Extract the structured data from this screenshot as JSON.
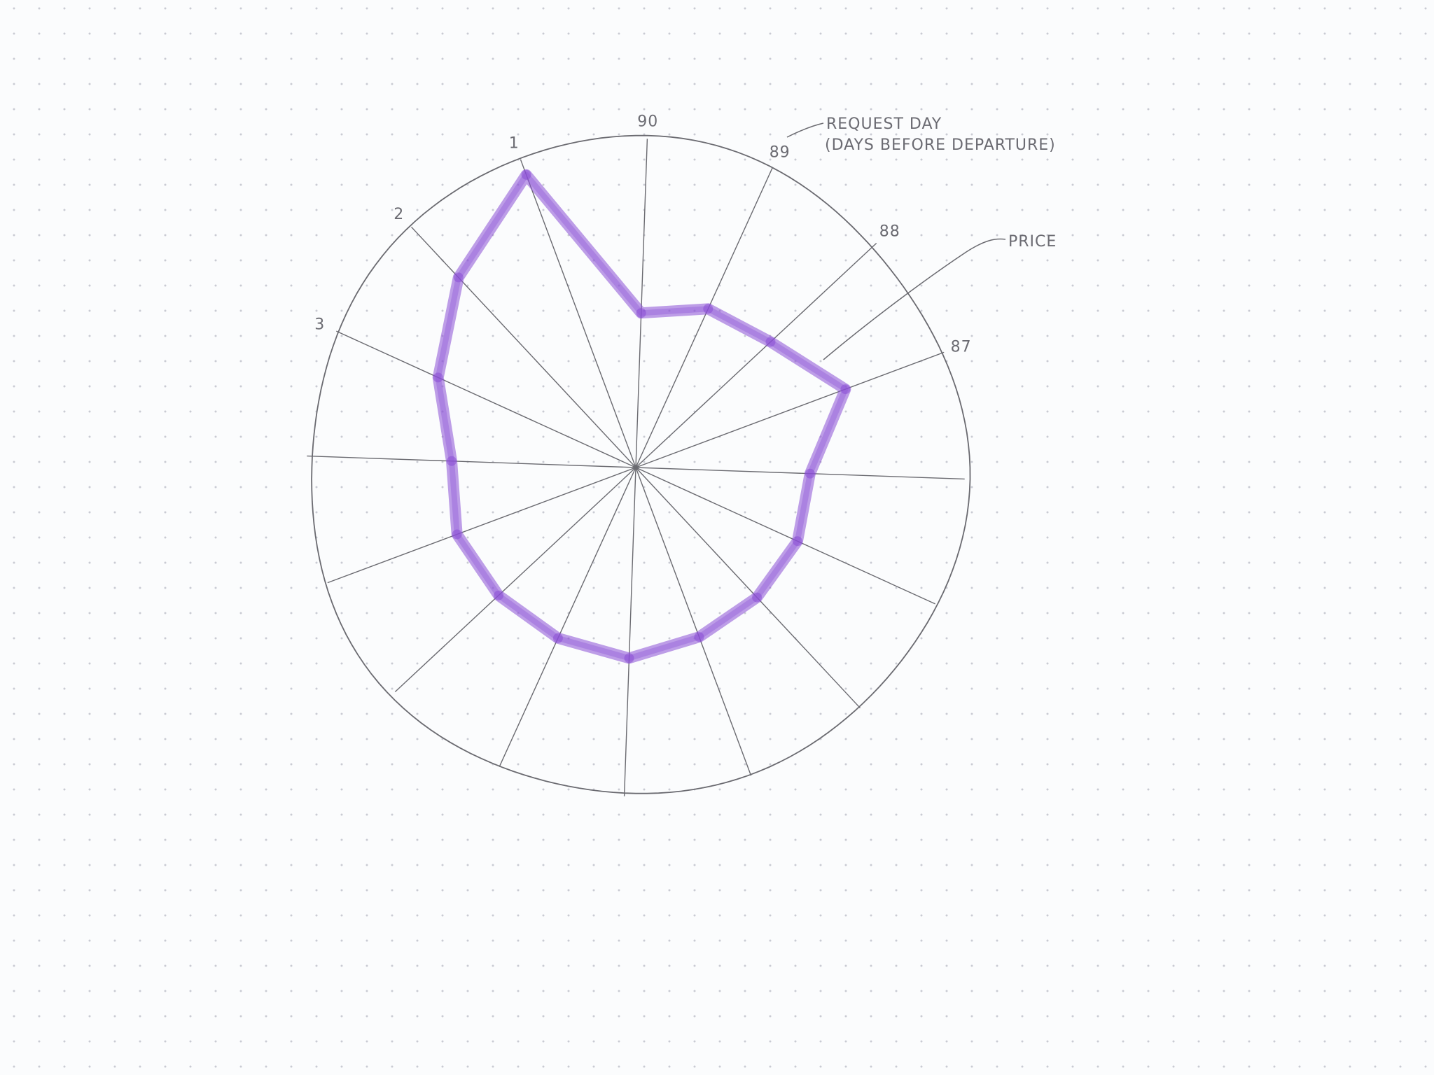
{
  "colors": {
    "background": "#fbfcfd",
    "grid_dot": "#c9cbd3",
    "ink": "#6a6a70",
    "series": "#8a4fd6"
  },
  "annotations": {
    "request_day_line1": "REQUEST DAY",
    "request_day_line2": "(DAYS BEFORE DEPARTURE)",
    "price": "PRICE"
  },
  "chart_data": {
    "type": "radar",
    "title": "",
    "axis_title": "REQUEST DAY (DAYS BEFORE DEPARTURE)",
    "axes": [
      "90",
      "89",
      "88",
      "87",
      "",
      "",
      "",
      "",
      "",
      "",
      "",
      "",
      "",
      "3",
      "2",
      "1"
    ],
    "series": [
      {
        "name": "PRICE",
        "values": [
          0.47,
          0.53,
          0.56,
          0.68,
          0.53,
          0.54,
          0.54,
          0.55,
          0.58,
          0.57,
          0.57,
          0.58,
          0.56,
          0.66,
          0.79,
          0.95
        ]
      }
    ],
    "rlim": [
      0,
      1
    ],
    "grid": true,
    "legend": "none"
  }
}
